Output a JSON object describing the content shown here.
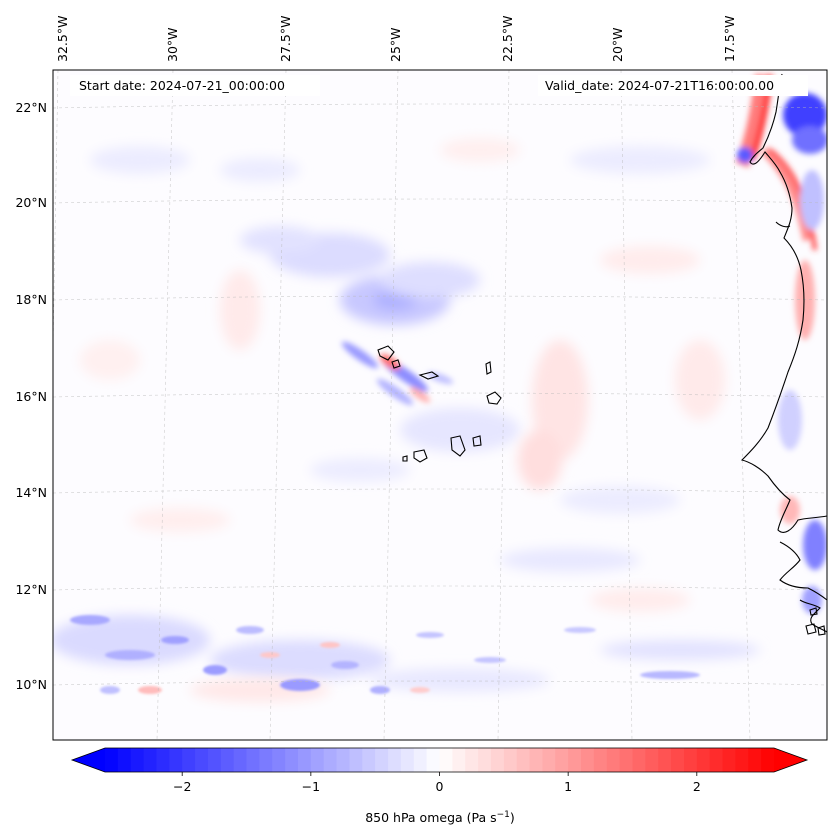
{
  "map": {
    "start_date_label": "Start date: 2024-07-21_00:00:00",
    "valid_date_label": "Valid_date: 2024-07-21T16:00:00.00",
    "longitude_labels": [
      "32.5°W",
      "30°W",
      "27.5°W",
      "25°W",
      "22.5°W",
      "20°W",
      "17.5°W"
    ],
    "latitude_labels": [
      "22°N",
      "20°N",
      "18°N",
      "16°N",
      "14°N",
      "12°N",
      "10°N"
    ]
  },
  "colorbar": {
    "label_prefix": "850 hPa omega (Pa s",
    "label_exponent": "−1",
    "label_suffix": ")",
    "tick_labels": [
      "−2",
      "−1",
      "0",
      "1",
      "2"
    ],
    "tick_values": [
      -2,
      -1,
      0,
      1,
      2
    ],
    "range": [
      -2.6,
      2.6
    ],
    "levels": 52
  },
  "colors": {
    "negative": "#0000ff",
    "neutral": "#ffffff",
    "positive": "#ff0000",
    "coast": "#000000",
    "grid": "#b0b0b0"
  }
}
